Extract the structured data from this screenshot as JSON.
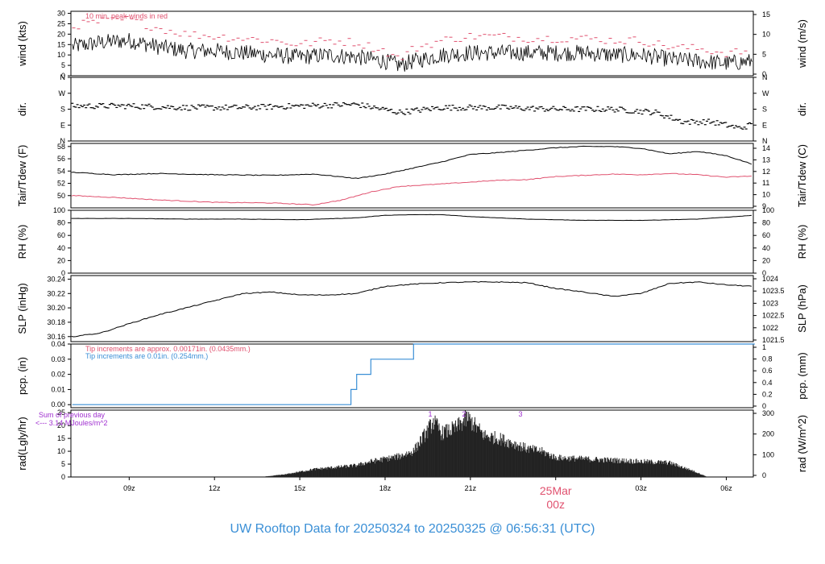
{
  "title": "UW Rooftop Data for 20250324  to  20250325 @ 06:56:31  (UTC)",
  "title_color": "#3a8fd6",
  "x_axis": {
    "labels": [
      "09z",
      "12z",
      "15z",
      "18z",
      "21z",
      "25Mar",
      "00z",
      "03z",
      "06z"
    ],
    "date_label": "25Mar",
    "midnight_label": "00z",
    "date_color": "#e0506e",
    "hours": [
      9,
      12,
      15,
      18,
      21,
      24,
      27,
      30
    ],
    "range_hours": [
      6.95,
      30.95
    ]
  },
  "chart_data": [
    {
      "type": "line",
      "id": "wind",
      "ylabel": "wind (kts)",
      "y2label": "wind (m/s)",
      "ylim": [
        0,
        31
      ],
      "yticks": [
        "0",
        "5",
        "10",
        "15",
        "20",
        "25",
        "30"
      ],
      "y2ticks": [
        "0",
        "5",
        "10",
        "15"
      ],
      "annotation": "10 min. peak winds in red",
      "annotation_color": "#e0506e",
      "series": [
        {
          "x": [
            7.0,
            8.0,
            9.0,
            10.0,
            11.0,
            12.0,
            13.0,
            14.0,
            15.0,
            16.0,
            17.0,
            18.0,
            18.5,
            19.0,
            20.0,
            21.0,
            22.0,
            23.0,
            24.0,
            25.0,
            26.0,
            27.0,
            28.0,
            29.0,
            30.0,
            31.0
          ],
          "values": [
            14,
            16,
            17,
            14,
            12,
            12,
            11,
            10,
            9,
            10,
            9,
            7,
            5,
            7,
            10,
            11,
            11,
            11,
            11,
            11,
            10,
            10,
            8,
            7,
            6,
            7
          ]
        },
        {
          "x": [
            7.0,
            8.0,
            9.0,
            10.0,
            11.0,
            12.0,
            13.0,
            14.0,
            15.0,
            16.0,
            17.0,
            18.0,
            18.5,
            19.0,
            20.0,
            21.0,
            22.0,
            23.0,
            24.0,
            25.0,
            26.0,
            27.0,
            28.0,
            29.0,
            30.0,
            31.0
          ],
          "values": [
            24,
            26,
            27,
            23,
            20,
            19,
            18,
            17,
            15,
            17,
            16,
            12,
            8,
            13,
            17,
            19,
            19,
            18,
            18,
            18,
            17,
            17,
            14,
            13,
            11,
            12
          ]
        }
      ]
    },
    {
      "type": "scatter",
      "id": "dir",
      "ylabel": "dir.",
      "y2label": "dir.",
      "ylim": [
        0,
        4
      ],
      "yticks": [
        "N",
        "E",
        "S",
        "W",
        "N"
      ],
      "series": [
        {
          "x": [
            7.0,
            9.0,
            11.0,
            13.0,
            15.0,
            17.0,
            18.5,
            20.0,
            22.0,
            24.0,
            26.0,
            27.5,
            28.5,
            29.5,
            30.5,
            31.0
          ],
          "values": [
            2.2,
            2.2,
            2.1,
            2.1,
            2.2,
            2.3,
            1.8,
            2.1,
            2.1,
            2.0,
            2.0,
            1.8,
            1.2,
            1.2,
            0.8,
            1.1
          ]
        }
      ]
    },
    {
      "type": "line",
      "id": "temp",
      "ylabel": "Tair/Tdew (F)",
      "y2label": "Tair/Tdew (C)",
      "ylim": [
        48,
        58.5
      ],
      "yticks": [
        "50",
        "52",
        "54",
        "56",
        "58"
      ],
      "y2ticks": [
        "9",
        "10",
        "11",
        "12",
        "13",
        "14"
      ],
      "series": [
        {
          "name": "Tair",
          "color": "#000000",
          "x": [
            7.0,
            8.5,
            10.0,
            12.0,
            14.0,
            15.5,
            17.0,
            18.0,
            19.0,
            20.0,
            21.0,
            22.0,
            23.0,
            24.0,
            25.0,
            26.0,
            27.0,
            28.0,
            29.0,
            30.0,
            31.0
          ],
          "values": [
            53.8,
            53.4,
            53.6,
            53.4,
            53.3,
            53.5,
            52.8,
            53.5,
            54.5,
            55.5,
            56.7,
            57.0,
            57.4,
            57.8,
            58.0,
            58.0,
            57.7,
            56.8,
            57.2,
            56.5,
            55.0
          ]
        },
        {
          "name": "Tdew",
          "color": "#e0506e",
          "x": [
            7.0,
            8.5,
            10.0,
            12.0,
            14.0,
            15.5,
            16.5,
            17.5,
            18.5,
            20.0,
            21.0,
            22.0,
            23.0,
            24.0,
            25.0,
            26.0,
            27.0,
            28.0,
            29.0,
            30.0,
            31.0
          ],
          "values": [
            50.0,
            49.7,
            49.3,
            48.9,
            48.8,
            48.5,
            49.3,
            50.6,
            51.5,
            51.9,
            52.2,
            52.5,
            52.6,
            53.1,
            53.3,
            53.5,
            53.4,
            53.6,
            53.4,
            53.0,
            53.2
          ]
        }
      ]
    },
    {
      "type": "line",
      "id": "rh",
      "ylabel": "RH (%)",
      "y2label": "RH (%)",
      "ylim": [
        0,
        100
      ],
      "yticks": [
        "0",
        "20",
        "40",
        "60",
        "80",
        "100"
      ],
      "series": [
        {
          "x": [
            7.0,
            9.0,
            11.0,
            13.0,
            15.0,
            17.0,
            18.0,
            19.0,
            20.0,
            21.0,
            23.0,
            25.0,
            27.0,
            29.0,
            31.0
          ],
          "values": [
            87,
            87,
            86,
            86,
            85,
            88,
            92,
            93,
            93,
            90,
            86,
            84,
            84,
            86,
            92
          ]
        }
      ]
    },
    {
      "type": "line",
      "id": "slp",
      "ylabel": "SLP (inHg)",
      "y2label": "SLP (hPa)",
      "ylim": [
        30.153,
        30.245
      ],
      "yticks": [
        "30.16",
        "30.18",
        "30.20",
        "30.22",
        "30.24"
      ],
      "y2ticks": [
        "1021.5",
        "1022",
        "1022.5",
        "1023",
        "1023.5",
        "1024"
      ],
      "series": [
        {
          "x": [
            7.0,
            8.0,
            9.0,
            10.0,
            11.0,
            12.0,
            13.0,
            14.0,
            15.0,
            16.0,
            17.0,
            18.0,
            19.0,
            20.0,
            21.0,
            22.0,
            23.0,
            24.0,
            25.0,
            26.0,
            27.0,
            28.0,
            29.0,
            30.0,
            31.0
          ],
          "values": [
            30.16,
            30.165,
            30.178,
            30.19,
            30.2,
            30.21,
            30.22,
            30.222,
            30.218,
            30.218,
            30.22,
            30.23,
            30.233,
            30.235,
            30.236,
            30.236,
            30.235,
            30.227,
            30.222,
            30.216,
            30.22,
            30.234,
            30.236,
            30.232,
            30.23
          ]
        }
      ]
    },
    {
      "type": "line",
      "id": "pcp",
      "ylabel": "pcp. (in)",
      "y2label": "pcp. (mm)",
      "ylim": [
        -0.002,
        0.04
      ],
      "yticks": [
        "0.00",
        "0.01",
        "0.02",
        "0.03",
        "0.04"
      ],
      "y2ticks": [
        "0",
        "0.2",
        "0.4",
        "0.6",
        "0.8",
        "1"
      ],
      "annotations": [
        {
          "text": "Tip increments are approx. 0.00171in. (0.0435mm.)",
          "color": "#e0506e"
        },
        {
          "text": "Tip increments are 0.01in. (0.254mm.)",
          "color": "#3a8fd6"
        }
      ],
      "series": [
        {
          "color": "#3a8fd6",
          "x": [
            7.0,
            16.8,
            16.8,
            17.0,
            17.0,
            17.5,
            17.5,
            18.2,
            18.2,
            19.0,
            19.0,
            31.0
          ],
          "values": [
            0.0,
            0.0,
            0.01,
            0.01,
            0.02,
            0.02,
            0.03,
            0.03,
            0.03,
            0.03,
            0.04,
            0.04
          ]
        }
      ]
    },
    {
      "type": "area",
      "id": "rad",
      "ylabel": "rad(Lgly/hr)",
      "y2label": "rad (W/m^2)",
      "ylim": [
        0,
        26
      ],
      "yticks": [
        "0",
        "5",
        "10",
        "15",
        "20",
        "25"
      ],
      "y2ticks": [
        "0",
        "100",
        "200",
        "300"
      ],
      "annotations": [
        {
          "text": "Sum of previous day",
          "color": "#a030d0"
        },
        {
          "text": "<--- 3.14 MJoules/m^2",
          "color": "#a030d0"
        }
      ],
      "markers": [
        "1",
        "2",
        "3"
      ],
      "marker_color": "#a030d0",
      "series": [
        {
          "x": [
            13.8,
            14.5,
            15.0,
            15.5,
            16.0,
            16.5,
            17.0,
            17.5,
            18.0,
            18.5,
            19.0,
            19.5,
            19.7,
            20.0,
            20.5,
            20.9,
            21.5,
            22.0,
            22.5,
            23.0,
            23.5,
            24.0,
            25.0,
            26.0,
            27.0,
            28.0,
            28.8,
            29.3
          ],
          "values": [
            0.2,
            1.0,
            2.0,
            3.0,
            3.5,
            4.0,
            4.5,
            6.0,
            7.0,
            8.0,
            10.0,
            18.0,
            21.5,
            17.0,
            19.0,
            23.0,
            16.0,
            15.0,
            13.0,
            11.0,
            10.0,
            7.5,
            7.0,
            6.5,
            6.0,
            5.5,
            2.5,
            0.2
          ]
        }
      ]
    }
  ]
}
